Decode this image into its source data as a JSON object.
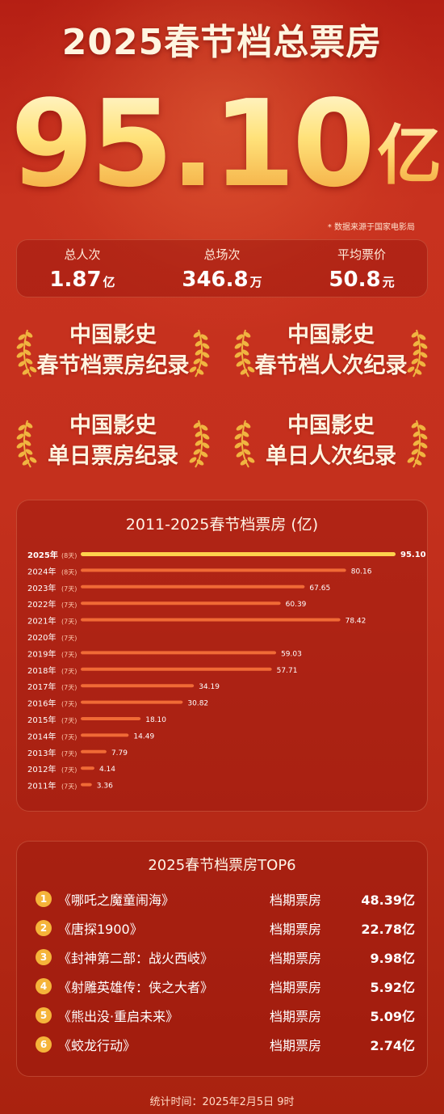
{
  "header": {
    "title": "2025春节档总票房",
    "total_value": "95.10",
    "total_unit": "亿",
    "source": "数据来源于国家电影局"
  },
  "stats": [
    {
      "label": "总人次",
      "value": "1.87",
      "unit": "亿"
    },
    {
      "label": "总场次",
      "value": "346.8",
      "unit": "万"
    },
    {
      "label": "平均票价",
      "value": "50.8",
      "unit": "元"
    }
  ],
  "records": [
    {
      "line1": "中国影史",
      "line2": "春节档票房纪录"
    },
    {
      "line1": "中国影史",
      "line2": "春节档人次纪录"
    },
    {
      "line1": "中国影史",
      "line2": "单日票房纪录"
    },
    {
      "line1": "中国影史",
      "line2": "单日人次纪录"
    }
  ],
  "colors": {
    "bar": "#f06a36",
    "bar_highlight": "#ffd24d",
    "badge": "#f5b43a",
    "laurel": "#f0b440"
  },
  "chart_data": {
    "type": "bar",
    "orientation": "horizontal",
    "title": "2011-2025春节档票房 (亿)",
    "categories": [
      "2025年",
      "2024年",
      "2023年",
      "2022年",
      "2021年",
      "2020年",
      "2019年",
      "2018年",
      "2017年",
      "2016年",
      "2015年",
      "2014年",
      "2013年",
      "2012年",
      "2011年"
    ],
    "days": [
      "(8天)",
      "(8天)",
      "(7天)",
      "(7天)",
      "(7天)",
      "(7天)",
      "(7天)",
      "(7天)",
      "(7天)",
      "(7天)",
      "(7天)",
      "(7天)",
      "(7天)",
      "(7天)",
      "(7天)"
    ],
    "values": [
      95.1,
      80.16,
      67.65,
      60.39,
      78.42,
      null,
      59.03,
      57.71,
      34.19,
      30.82,
      18.1,
      14.49,
      7.79,
      4.14,
      3.36
    ],
    "value_labels": [
      "95.10",
      "80.16",
      "67.65",
      "60.39",
      "78.42",
      "",
      "59.03",
      "57.71",
      "34.19",
      "30.82",
      "18.10",
      "14.49",
      "7.79",
      "4.14",
      "3.36"
    ],
    "highlight": "2025年"
  },
  "top6": {
    "title": "2025春节档票房TOP6",
    "items": [
      {
        "rank": "1",
        "movie": "《哪吒之魔童闹海》",
        "label": "档期票房",
        "value": "48.39亿"
      },
      {
        "rank": "2",
        "movie": "《唐探1900》",
        "label": "档期票房",
        "value": "22.78亿"
      },
      {
        "rank": "3",
        "movie": "《封神第二部：战火西岐》",
        "label": "档期票房",
        "value": "9.98亿"
      },
      {
        "rank": "4",
        "movie": "《射雕英雄传：侠之大者》",
        "label": "档期票房",
        "value": "5.92亿"
      },
      {
        "rank": "5",
        "movie": "《熊出没·重启未来》",
        "label": "档期票房",
        "value": "5.09亿"
      },
      {
        "rank": "6",
        "movie": "《蛟龙行动》",
        "label": "档期票房",
        "value": "2.74亿"
      }
    ]
  },
  "footer": "统计时间：2025年2月5日 9时"
}
